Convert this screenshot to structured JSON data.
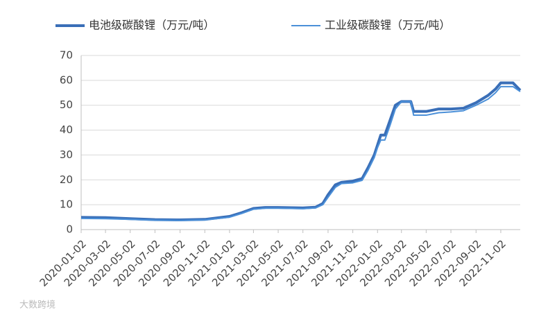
{
  "chart_data": {
    "type": "line",
    "x": [
      "2020-01-02",
      "2020-03-02",
      "2020-05-02",
      "2020-07-02",
      "2020-09-02",
      "2020-11-02",
      "2021-01-02",
      "2021-02-01",
      "2021-03-02",
      "2021-04-01",
      "2021-05-02",
      "2021-07-02",
      "2021-08-02",
      "2021-08-20",
      "2021-09-02",
      "2021-09-20",
      "2021-10-05",
      "2021-11-02",
      "2021-11-25",
      "2021-12-10",
      "2021-12-25",
      "2022-01-02",
      "2022-01-10",
      "2022-01-20",
      "2022-02-02",
      "2022-02-15",
      "2022-03-02",
      "2022-03-25",
      "2022-04-01",
      "2022-05-02",
      "2022-06-02",
      "2022-07-02",
      "2022-08-02",
      "2022-09-02",
      "2022-10-02",
      "2022-10-20",
      "2022-11-02",
      "2022-12-02",
      "2022-12-20"
    ],
    "series": [
      {
        "name": "电池级碳酸锂（万元/吨）",
        "color": "#3a6fb8",
        "width": 4,
        "values": [
          4.9,
          4.8,
          4.4,
          4.0,
          3.9,
          4.1,
          5.3,
          6.8,
          8.5,
          8.9,
          8.9,
          8.7,
          9.0,
          10.5,
          14,
          18,
          19,
          19.5,
          20.5,
          25,
          30,
          34,
          38,
          38,
          44,
          50,
          51.5,
          51.5,
          47.5,
          47.5,
          48.5,
          48.5,
          48.8,
          51,
          54,
          56.5,
          59,
          59,
          56
        ]
      },
      {
        "name": "工业级碳酸锂（万元/吨）",
        "color": "#4a8fd8",
        "width": 2,
        "values": [
          4.5,
          4.4,
          4.1,
          3.8,
          3.7,
          3.9,
          5.0,
          6.5,
          8.2,
          8.6,
          8.6,
          8.4,
          8.7,
          10.0,
          13,
          17,
          18.5,
          18.8,
          19.8,
          24,
          29,
          33,
          36,
          36,
          42,
          48.5,
          51.5,
          51.5,
          46,
          46,
          47,
          47.3,
          47.8,
          50,
          52.5,
          55,
          57.5,
          57.5,
          55.5
        ]
      }
    ],
    "xlim": [
      "2020-01-02",
      "2022-12-20"
    ],
    "xticks": [
      "2020-01-02",
      "2020-03-02",
      "2020-05-02",
      "2020-07-02",
      "2020-09-02",
      "2020-11-02",
      "2021-01-02",
      "2021-03-02",
      "2021-05-02",
      "2021-07-02",
      "2021-09-02",
      "2021-11-02",
      "2022-01-02",
      "2022-03-02",
      "2022-05-02",
      "2022-07-02",
      "2022-09-02",
      "2022-11-02"
    ],
    "ylim": [
      0,
      70
    ],
    "yticks": [
      0,
      10,
      20,
      30,
      40,
      50,
      60,
      70
    ],
    "grid": true,
    "legend": "top",
    "watermark": "大数跨境"
  }
}
